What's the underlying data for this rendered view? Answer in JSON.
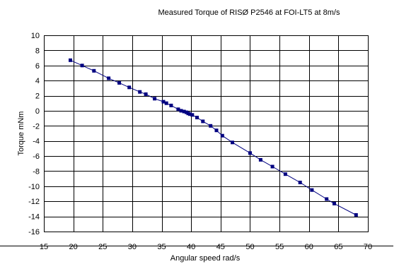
{
  "chart_data": {
    "type": "line",
    "title": "Measured Torque of RISØ P2546 at FOI-LT5 at 8m/s",
    "xlabel": "Angular speed rad/s",
    "ylabel": "Torque mNm",
    "xlim": [
      15,
      70
    ],
    "ylim": [
      -16,
      10
    ],
    "x_ticks": [
      15,
      20,
      25,
      30,
      35,
      40,
      45,
      50,
      55,
      60,
      65,
      70
    ],
    "y_ticks": [
      10,
      8,
      6,
      4,
      2,
      0,
      -2,
      -4,
      -6,
      -8,
      -10,
      -12,
      -14,
      -16
    ],
    "grid": true,
    "legend": "none",
    "series": [
      {
        "color": "#000080",
        "marker": "square",
        "points": [
          [
            19.5,
            6.7
          ],
          [
            21.5,
            6.0
          ],
          [
            23.5,
            5.3
          ],
          [
            26.0,
            4.3
          ],
          [
            27.8,
            3.7
          ],
          [
            29.5,
            3.1
          ],
          [
            31.3,
            2.5
          ],
          [
            32.3,
            2.2
          ],
          [
            33.8,
            1.6
          ],
          [
            35.3,
            1.2
          ],
          [
            35.8,
            1.0
          ],
          [
            36.6,
            0.7
          ],
          [
            37.8,
            0.2
          ],
          [
            38.3,
            0.0
          ],
          [
            38.8,
            -0.1
          ],
          [
            39.2,
            -0.2
          ],
          [
            39.5,
            -0.35
          ],
          [
            39.8,
            -0.45
          ],
          [
            40.2,
            -0.55
          ],
          [
            41.0,
            -0.9
          ],
          [
            42.0,
            -1.4
          ],
          [
            43.3,
            -2.0
          ],
          [
            44.3,
            -2.6
          ],
          [
            45.3,
            -3.3
          ],
          [
            47.0,
            -4.2
          ],
          [
            50.0,
            -5.6
          ],
          [
            51.8,
            -6.5
          ],
          [
            53.8,
            -7.4
          ],
          [
            56.0,
            -8.4
          ],
          [
            58.5,
            -9.5
          ],
          [
            60.5,
            -10.5
          ],
          [
            63.0,
            -11.7
          ],
          [
            64.3,
            -12.3
          ],
          [
            68.0,
            -13.8
          ]
        ]
      }
    ]
  }
}
